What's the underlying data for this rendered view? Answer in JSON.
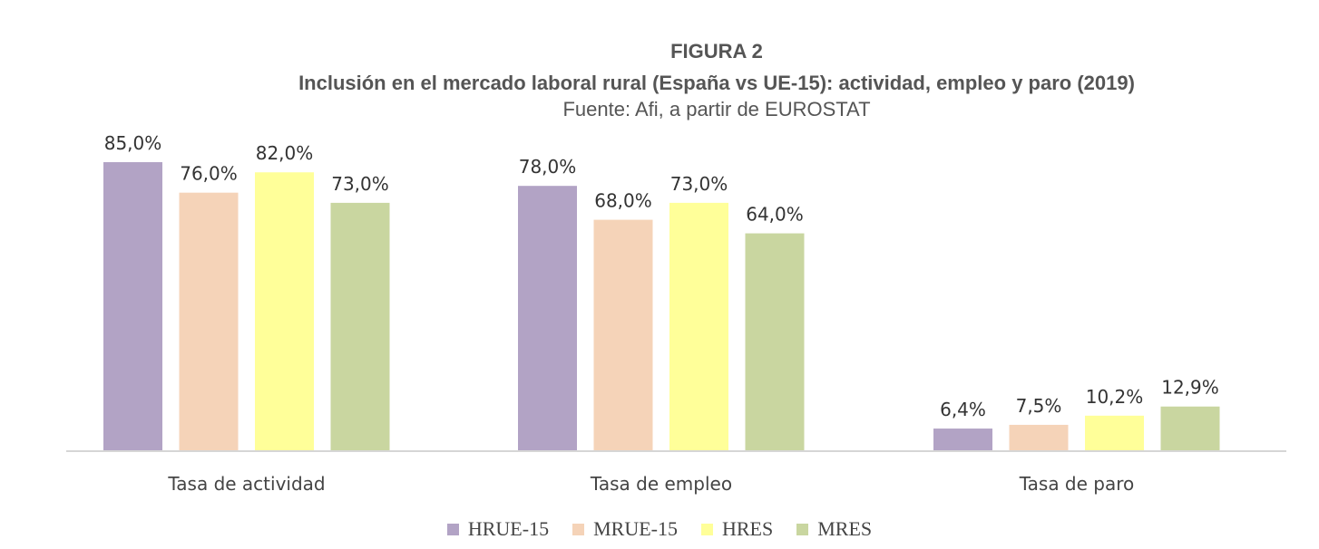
{
  "figure": {
    "number": "FIGURA 2",
    "title": "Inclusión en el mercado laboral rural (España vs UE-15): actividad, empleo y paro (2019)",
    "source": "Fuente: Afi, a partir de EUROSTAT"
  },
  "chart_data": {
    "type": "bar",
    "categories": [
      "Tasa de actividad",
      "Tasa de empleo",
      "Tasa de paro"
    ],
    "series": [
      {
        "name": "HRUE-15",
        "color": "#b2a3c5",
        "values": [
          85.0,
          78.0,
          6.4
        ],
        "labels": [
          "85,0%",
          "78,0%",
          "6,4%"
        ]
      },
      {
        "name": "MRUE-15",
        "color": "#f5d3b8",
        "values": [
          76.0,
          68.0,
          7.5
        ],
        "labels": [
          "76,0%",
          "68,0%",
          "7,5%"
        ]
      },
      {
        "name": "HRES",
        "color": "#ffff99",
        "values": [
          82.0,
          73.0,
          10.2
        ],
        "labels": [
          "82,0%",
          "73,0%",
          "10,2%"
        ]
      },
      {
        "name": "MRES",
        "color": "#c9d6a0",
        "values": [
          73.0,
          64.0,
          12.9
        ],
        "labels": [
          "73,0%",
          "64,0%",
          "12,9%"
        ]
      }
    ],
    "ylim": [
      0,
      85
    ],
    "grid": false,
    "legend_position": "bottom"
  }
}
